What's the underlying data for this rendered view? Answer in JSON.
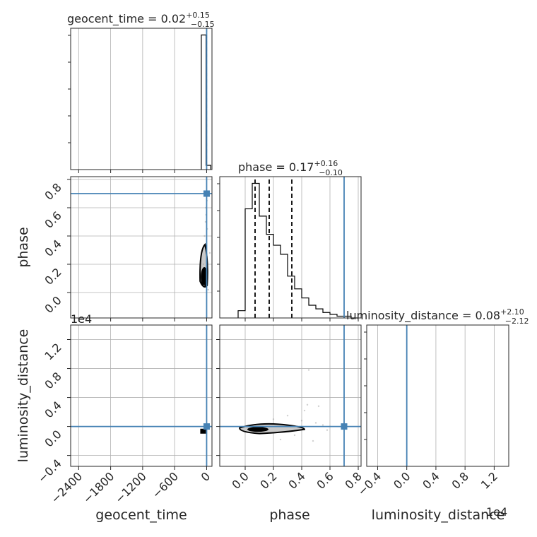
{
  "chart_data": {
    "type": "corner",
    "parameters": [
      "geocent_time",
      "phase",
      "luminosity_distance"
    ],
    "titles": [
      {
        "param": "geocent_time",
        "text": "geocent_time = 0.02",
        "sup": "+0.15",
        "sub": "−0.15"
      },
      {
        "param": "phase",
        "text": "phase = 0.17",
        "sup": "+0.16",
        "sub": "−0.10"
      },
      {
        "param": "luminosity_distance",
        "text": "luminosity_distance = 0.08",
        "sup": "+2.10",
        "sub": "−2.12"
      }
    ],
    "axes": {
      "geocent_time": {
        "range": [
          -2550,
          100
        ],
        "ticks": [
          -2400,
          -1800,
          -1200,
          -600,
          0
        ],
        "tick_labels": [
          "−2400",
          "−1800",
          "−1200",
          "−600",
          "0"
        ]
      },
      "phase": {
        "range": [
          -0.18,
          0.82
        ],
        "ticks": [
          0.0,
          0.2,
          0.4,
          0.6,
          0.8
        ],
        "tick_labels": [
          "0.0",
          "0.2",
          "0.4",
          "0.6",
          "0.8"
        ]
      },
      "luminosity_distance": {
        "range": [
          -0.55,
          1.4
        ],
        "ticks": [
          -0.4,
          0.0,
          0.4,
          0.8,
          1.2
        ],
        "tick_labels": [
          "−0.4",
          "0.0",
          "0.4",
          "0.8",
          "1.2"
        ],
        "offset_label": "1e4"
      }
    },
    "truths": {
      "geocent_time": 0,
      "phase": 0.7,
      "luminosity_distance": 0
    },
    "quantiles": {
      "phase": [
        0.07,
        0.17,
        0.33
      ]
    },
    "histograms": {
      "geocent_time": {
        "edges": [
          -100,
          -11,
          78
        ],
        "counts": [
          95,
          3
        ]
      },
      "phase": {
        "edges": [
          -0.05,
          0.0,
          0.05,
          0.1,
          0.15,
          0.2,
          0.25,
          0.3,
          0.35,
          0.4,
          0.45,
          0.5,
          0.55,
          0.6,
          0.65,
          0.7,
          0.75,
          0.8
        ],
        "counts": [
          4,
          60,
          74,
          56,
          46,
          40,
          35,
          23,
          16,
          11,
          7,
          5,
          3,
          2,
          1,
          1,
          0
        ]
      },
      "luminosity_distance": {
        "edges": [
          -0.1,
          0.0,
          0.1
        ],
        "counts": [
          94,
          4
        ]
      }
    },
    "grid": true
  }
}
